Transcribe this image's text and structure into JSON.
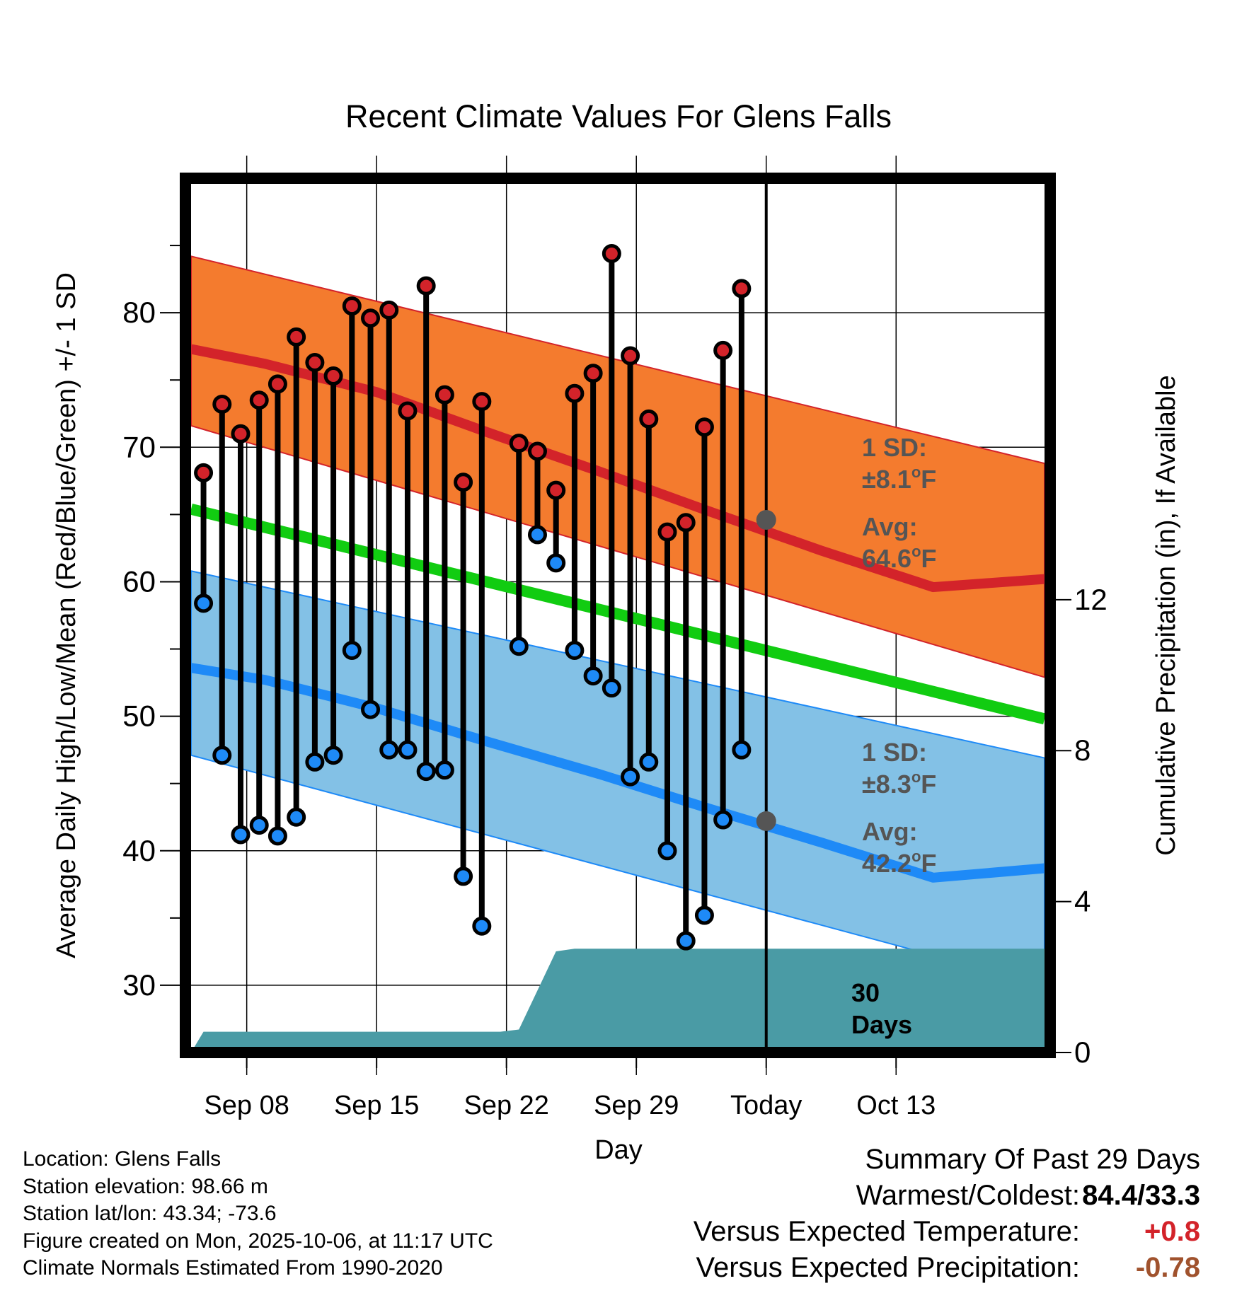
{
  "chart_data": {
    "type": "line",
    "title": "Recent Climate Values For Glens Falls",
    "xlabel": "Day",
    "ylabel": "Average Daily High/Low/Mean (Red/Blue/Green) +/- 1 SD",
    "y2label": "Cumulative Precipitation (in), If Available",
    "ylim": [
      25,
      90
    ],
    "y2lim": [
      0,
      23.17
    ],
    "xlim": [
      0,
      46
    ],
    "yticks": [
      30,
      40,
      50,
      60,
      70,
      80
    ],
    "y2ticks": [
      0,
      4,
      8,
      12
    ],
    "x_tick_positions": [
      3,
      10,
      17,
      24,
      31,
      38
    ],
    "x_tick_labels": [
      "Sep 08",
      "Sep 15",
      "Sep 22",
      "Sep 29",
      "Today",
      "Oct 13"
    ],
    "today_index": 31,
    "normal_high": {
      "x": [
        0,
        4,
        10,
        16,
        22,
        28,
        34,
        40,
        46
      ],
      "y": [
        77.3,
        76.2,
        74.1,
        71.1,
        68.2,
        65.2,
        62.3,
        59.6,
        60.2
      ]
    },
    "normal_high_sd": 8.1,
    "normal_low": {
      "x": [
        0,
        4,
        10,
        16,
        22,
        28,
        34,
        40,
        46
      ],
      "y": [
        53.6,
        52.7,
        50.6,
        48.1,
        45.7,
        43.1,
        40.6,
        38.0,
        38.7
      ]
    },
    "normal_low_sd": 8.3,
    "normal_mean": {
      "x": [
        0,
        46
      ],
      "y": [
        65.4,
        49.8
      ]
    },
    "normal_band_ends": {
      "high_upper": [
        84.2,
        68.8
      ],
      "high_lower": [
        71.6,
        52.9
      ],
      "low_upper": [
        60.8,
        46.9
      ],
      "low_lower": [
        47.1,
        30.0
      ]
    },
    "daily": [
      {
        "x": 0.67,
        "high": 68.1,
        "low": 58.4
      },
      {
        "x": 1.67,
        "high": 73.2,
        "low": 47.1
      },
      {
        "x": 2.67,
        "high": 71.0,
        "low": 41.2
      },
      {
        "x": 3.67,
        "high": 73.5,
        "low": 41.9
      },
      {
        "x": 4.67,
        "high": 74.7,
        "low": 41.1
      },
      {
        "x": 5.67,
        "high": 78.2,
        "low": 42.5
      },
      {
        "x": 6.67,
        "high": 76.3,
        "low": 46.6
      },
      {
        "x": 7.67,
        "high": 75.3,
        "low": 47.1
      },
      {
        "x": 8.67,
        "high": 80.5,
        "low": 54.9
      },
      {
        "x": 9.67,
        "high": 79.6,
        "low": 50.5
      },
      {
        "x": 10.67,
        "high": 80.2,
        "low": 47.5
      },
      {
        "x": 11.67,
        "high": 72.7,
        "low": 47.5
      },
      {
        "x": 12.67,
        "high": 82.0,
        "low": 45.9
      },
      {
        "x": 13.67,
        "high": 73.9,
        "low": 46.0
      },
      {
        "x": 14.67,
        "high": 67.4,
        "low": 38.1
      },
      {
        "x": 15.67,
        "high": 73.4,
        "low": 34.4
      },
      {
        "x": 17.67,
        "high": 70.3,
        "low": 55.2
      },
      {
        "x": 18.67,
        "high": 69.7,
        "low": 63.5
      },
      {
        "x": 19.67,
        "high": 66.8,
        "low": 61.4
      },
      {
        "x": 20.67,
        "high": 74.0,
        "low": 54.9
      },
      {
        "x": 21.67,
        "high": 75.5,
        "low": 53.0
      },
      {
        "x": 22.67,
        "high": 84.4,
        "low": 52.1
      },
      {
        "x": 23.67,
        "high": 76.8,
        "low": 45.5
      },
      {
        "x": 24.67,
        "high": 72.1,
        "low": 46.6
      },
      {
        "x": 25.67,
        "high": 63.7,
        "low": 40.0
      },
      {
        "x": 26.67,
        "high": 64.4,
        "low": 33.3
      },
      {
        "x": 27.67,
        "high": 71.5,
        "low": 35.2
      },
      {
        "x": 28.67,
        "high": 77.2,
        "low": 42.3
      },
      {
        "x": 29.67,
        "high": 81.8,
        "low": 47.5
      }
    ],
    "precip_cumulative": {
      "x": [
        0,
        0.67,
        16.67,
        17.67,
        19.67,
        20.67,
        46
      ],
      "y": [
        0,
        0.55,
        0.55,
        0.61,
        2.68,
        2.75,
        2.75
      ]
    },
    "high_today_avg": 64.6,
    "low_today_avg": 42.2,
    "annotations": {
      "high_sd_label": "1 SD:",
      "high_sd_value": "±8.1",
      "high_avg_label": "Avg:",
      "high_avg_value": "64.6",
      "low_sd_label": "1 SD:",
      "low_sd_value": "±8.3",
      "low_avg_label": "Avg:",
      "low_avg_value": "42.2",
      "degree_unit": "o",
      "f_unit": "F",
      "days_count": "30",
      "days_word": "Days"
    },
    "colors": {
      "high_band": "#f47b2e",
      "high_line": "#d3232a",
      "low_band": "#83c1e6",
      "low_line": "#1e8af7",
      "mean_line": "#11cc11",
      "precip": "#4a9ba5",
      "high_dot": "#d3232a",
      "low_dot": "#1e8af7",
      "annotation_text": "#555555"
    }
  },
  "footer": {
    "location": "Location: Glens Falls",
    "elevation": "Station elevation: 98.66 m",
    "latlon": "Station lat/lon: 43.34; -73.6",
    "created": "Figure created on Mon, 2025-10-06, at 11:17 UTC",
    "normals": "Climate Normals Estimated From 1990-2020"
  },
  "summary": {
    "title": "Summary Of Past 29 Days",
    "warm_cold_label": "Warmest/Coldest:",
    "warm_cold_value": "84.4/33.3",
    "temp_label": "Versus Expected Temperature:",
    "temp_value": "+0.8",
    "temp_color": "#d3232a",
    "precip_label": "Versus Expected Precipitation:",
    "precip_value": "-0.78",
    "precip_color": "#a0522d"
  }
}
